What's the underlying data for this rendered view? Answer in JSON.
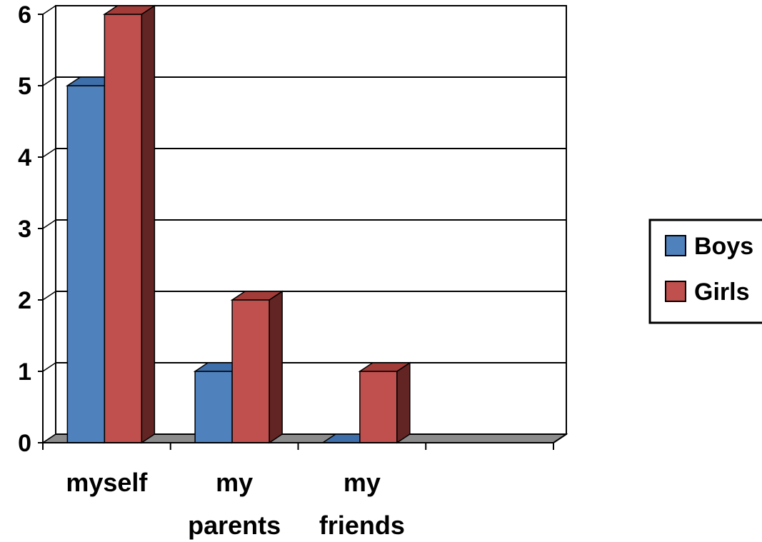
{
  "chart_data": {
    "type": "bar",
    "categories": [
      [
        "myself"
      ],
      [
        "my",
        "parents"
      ],
      [
        "my",
        "friends"
      ],
      []
    ],
    "series": [
      {
        "name": "Boys",
        "values": [
          5,
          1,
          0,
          null
        ],
        "color": "#4F81BD",
        "side_color": "#385D8A",
        "top_color": "#3F6FAA"
      },
      {
        "name": "Girls",
        "values": [
          6,
          2,
          1,
          null
        ],
        "color": "#C0504D",
        "side_color": "#632523",
        "top_color": "#A23C39"
      }
    ],
    "ylim": [
      0,
      6
    ],
    "yticks": [
      0,
      1,
      2,
      3,
      4,
      5,
      6
    ],
    "grid": true,
    "legend_position": "right",
    "title": "",
    "xlabel": "",
    "ylabel": ""
  }
}
